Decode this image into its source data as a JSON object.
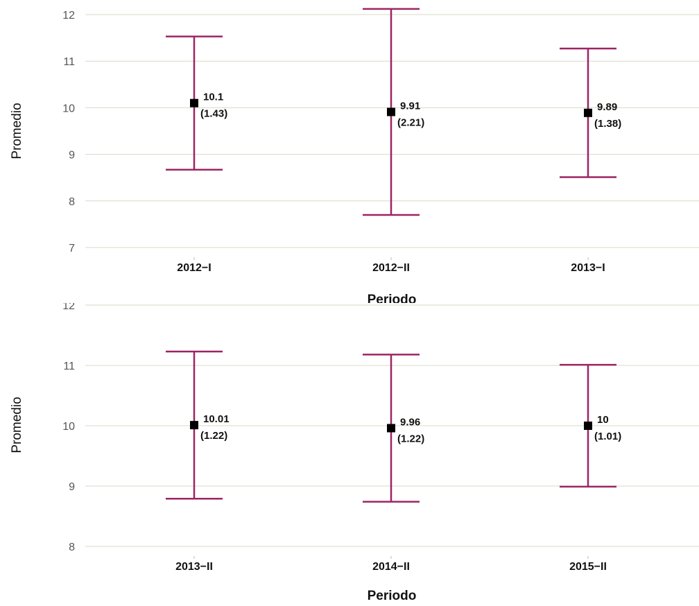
{
  "colors": {
    "error_bar": "#9c2463",
    "point": "#000000",
    "grid": "#d8d8c8"
  },
  "chart_data": [
    {
      "type": "scatter",
      "subtype": "errorbar",
      "xlabel": "Periodo",
      "ylabel": "Promedio",
      "categories": [
        "2012−I",
        "2012−II",
        "2013−I"
      ],
      "mean": [
        10.1,
        9.91,
        9.89
      ],
      "sd": [
        1.43,
        2.21,
        1.38
      ],
      "mean_labels": [
        "10.1",
        "9.91",
        "9.89"
      ],
      "sd_labels": [
        "(1.43)",
        "(2.21)",
        "(1.38)"
      ],
      "ylim": [
        7,
        12
      ],
      "yticks": [
        "7",
        "8",
        "9",
        "10",
        "11",
        "12"
      ],
      "grid": true
    },
    {
      "type": "scatter",
      "subtype": "errorbar",
      "xlabel": "Periodo",
      "ylabel": "Promedio",
      "categories": [
        "2013−II",
        "2014−II",
        "2015−II"
      ],
      "mean": [
        10.01,
        9.96,
        10
      ],
      "sd": [
        1.22,
        1.22,
        1.01
      ],
      "mean_labels": [
        "10.01",
        "9.96",
        "10"
      ],
      "sd_labels": [
        "(1.22)",
        "(1.22)",
        "(1.01)"
      ],
      "ylim": [
        8,
        12
      ],
      "yticks": [
        "8",
        "9",
        "10",
        "11",
        "12"
      ],
      "grid": true
    }
  ]
}
